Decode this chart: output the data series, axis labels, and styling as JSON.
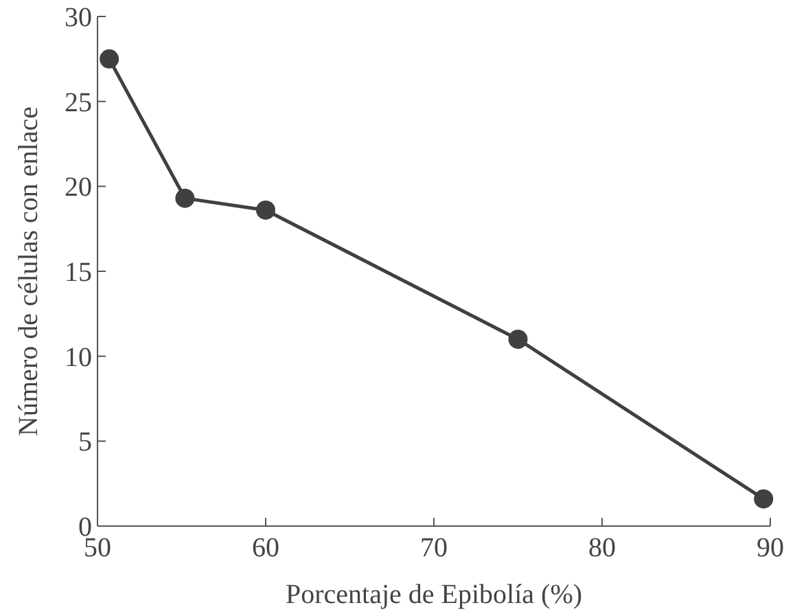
{
  "chart_data": {
    "type": "line",
    "xlabel": "Porcentaje de Epibolía (%)",
    "ylabel": "Número de células con enlace",
    "x": [
      50.7,
      55.2,
      60.0,
      75.0,
      89.6
    ],
    "series": [
      {
        "color": "#404040",
        "values": [
          27.5,
          19.3,
          18.6,
          11.0,
          1.6
        ]
      }
    ],
    "xlim": [
      50,
      90
    ],
    "xticks": [
      50,
      60,
      70,
      80,
      90
    ],
    "ylim": [
      0,
      30
    ],
    "yticks": [
      0,
      5,
      10,
      15,
      20,
      25,
      30
    ],
    "marker": "circle",
    "line_style": "solid",
    "grid": false
  }
}
